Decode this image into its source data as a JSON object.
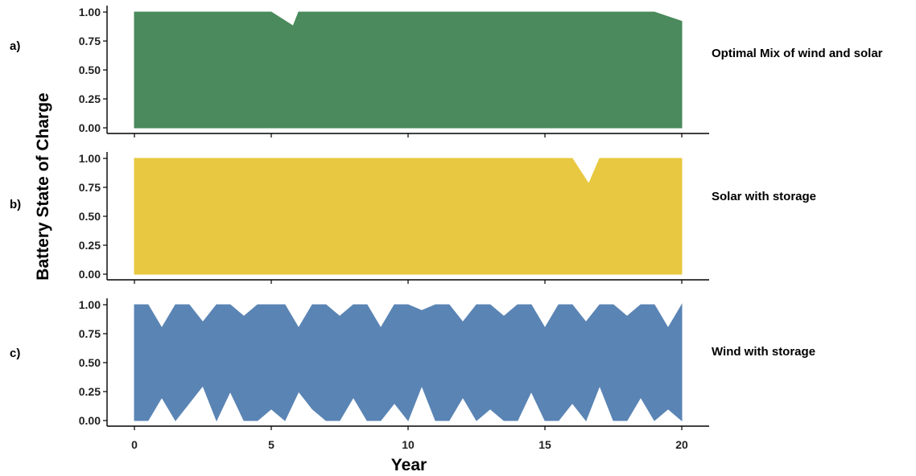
{
  "chart_data": {
    "type": "area",
    "xlabel": "Year",
    "ylabel": "Battery State of Charge",
    "xlim": [
      -1,
      21
    ],
    "x_ticks": [
      "0",
      "5",
      "10",
      "15",
      "20"
    ],
    "x_tick_values": [
      0,
      5,
      10,
      15,
      20
    ],
    "grid": false,
    "panels": [
      {
        "letter": "a)",
        "title": "Optimal Mix of wind and solar",
        "color": "#4a8a5c",
        "ylim": [
          0,
          1
        ],
        "y_ticks": [
          "0.00",
          "0.25",
          "0.50",
          "0.75",
          "1.00"
        ],
        "y_tick_values": [
          0,
          0.25,
          0.5,
          0.75,
          1.0
        ],
        "series": [
          {
            "x": [
              0,
              1,
              2,
              3,
              4,
              5,
              5.8,
              6,
              7,
              8,
              9,
              10,
              11,
              12,
              13,
              14,
              15,
              16,
              17,
              18,
              19,
              20
            ],
            "y_max": [
              1.0,
              1.0,
              1.0,
              1.0,
              1.0,
              1.0,
              0.88,
              1.0,
              1.0,
              1.0,
              1.0,
              1.0,
              1.0,
              1.0,
              1.0,
              1.0,
              1.0,
              1.0,
              1.0,
              1.0,
              1.0,
              0.92
            ],
            "y_min": [
              0,
              0,
              0,
              0,
              0,
              0,
              0,
              0,
              0,
              0,
              0,
              0,
              0,
              0,
              0,
              0,
              0,
              0,
              0,
              0,
              0,
              0
            ]
          }
        ]
      },
      {
        "letter": "b)",
        "title": "Solar with storage",
        "color": "#e8c840",
        "ylim": [
          0,
          1
        ],
        "y_ticks": [
          "0.00",
          "0.25",
          "0.50",
          "0.75",
          "1.00"
        ],
        "y_tick_values": [
          0,
          0.25,
          0.5,
          0.75,
          1.0
        ],
        "series": [
          {
            "x": [
              0,
              1,
              2,
              3,
              4,
              5,
              6,
              7,
              8,
              9,
              10,
              11,
              12,
              13,
              14,
              15,
              16,
              16.6,
              17,
              18,
              19,
              20
            ],
            "y_max": [
              1.0,
              1.0,
              1.0,
              1.0,
              1.0,
              1.0,
              1.0,
              1.0,
              1.0,
              1.0,
              1.0,
              1.0,
              1.0,
              1.0,
              1.0,
              1.0,
              1.0,
              0.78,
              1.0,
              1.0,
              1.0,
              1.0
            ],
            "y_min": [
              0,
              0,
              0,
              0,
              0,
              0,
              0,
              0,
              0,
              0,
              0,
              0,
              0,
              0,
              0,
              0,
              0,
              0,
              0,
              0,
              0,
              0
            ]
          }
        ]
      },
      {
        "letter": "c)",
        "title": "Wind with storage",
        "color": "#5a84b4",
        "ylim": [
          0,
          1
        ],
        "y_ticks": [
          "0.00",
          "0.25",
          "0.50",
          "0.75",
          "1.00"
        ],
        "y_tick_values": [
          0,
          0.25,
          0.5,
          0.75,
          1.0
        ],
        "series": [
          {
            "x": [
              0,
              0.5,
              1,
              1.5,
              2,
              2.5,
              3,
              3.5,
              4,
              4.5,
              5,
              5.5,
              6,
              6.5,
              7,
              7.5,
              8,
              8.5,
              9,
              9.5,
              10,
              10.5,
              11,
              11.5,
              12,
              12.5,
              13,
              13.5,
              14,
              14.5,
              15,
              15.5,
              16,
              16.5,
              17,
              17.5,
              18,
              18.5,
              19,
              19.5,
              20
            ],
            "y_max": [
              1.0,
              1.0,
              0.8,
              1.0,
              1.0,
              0.85,
              1.0,
              1.0,
              0.9,
              1.0,
              1.0,
              1.0,
              0.8,
              1.0,
              1.0,
              0.9,
              1.0,
              1.0,
              0.8,
              1.0,
              1.0,
              0.95,
              1.0,
              1.0,
              0.85,
              1.0,
              1.0,
              0.9,
              1.0,
              1.0,
              0.8,
              1.0,
              1.0,
              0.85,
              1.0,
              1.0,
              0.9,
              1.0,
              1.0,
              0.8,
              1.0
            ],
            "y_min": [
              0.0,
              0.0,
              0.2,
              0.0,
              0.15,
              0.3,
              0.0,
              0.25,
              0.0,
              0.0,
              0.1,
              0.0,
              0.25,
              0.1,
              0.0,
              0.0,
              0.2,
              0.0,
              0.0,
              0.15,
              0.0,
              0.3,
              0.0,
              0.0,
              0.2,
              0.0,
              0.1,
              0.0,
              0.0,
              0.25,
              0.0,
              0.0,
              0.15,
              0.0,
              0.3,
              0.0,
              0.0,
              0.2,
              0.0,
              0.1,
              0.0
            ]
          }
        ]
      }
    ]
  }
}
